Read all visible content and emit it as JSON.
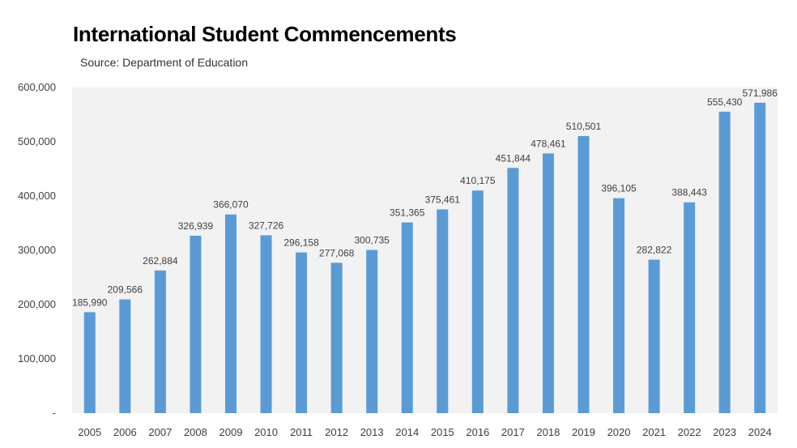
{
  "chart_data": {
    "type": "bar",
    "title": "International Student Commencements",
    "subtitle": "Source: Department of Education",
    "xlabel": "",
    "ylabel": "",
    "ylim": [
      0,
      600000
    ],
    "yticks": [
      0,
      100000,
      200000,
      300000,
      400000,
      500000,
      600000
    ],
    "ytick_labels": [
      "-",
      "100,000",
      "200,000",
      "300,000",
      "400,000",
      "500,000",
      "600,000"
    ],
    "categories": [
      "2005",
      "2006",
      "2007",
      "2008",
      "2009",
      "2010",
      "2011",
      "2012",
      "2013",
      "2014",
      "2015",
      "2016",
      "2017",
      "2018",
      "2019",
      "2020",
      "2021",
      "2022",
      "2023",
      "2024"
    ],
    "values": [
      185990,
      209566,
      262884,
      326939,
      366070,
      327726,
      296158,
      277068,
      300735,
      351365,
      375461,
      410175,
      451844,
      478461,
      510501,
      396105,
      282822,
      388443,
      555430,
      571986
    ],
    "data_labels": [
      "185,990",
      "209,566",
      "262,884",
      "326,939",
      "366,070",
      "327,726",
      "296,158",
      "277,068",
      "300,735",
      "351,365",
      "375,461",
      "410,175",
      "451,844",
      "478,461",
      "510,501",
      "396,105",
      "282,822",
      "388,443",
      "555,430",
      "571,986"
    ],
    "grid": false,
    "legend": "none",
    "colors": {
      "bar": "#5b9bd5",
      "plot_background": "#f2f2f2"
    }
  }
}
